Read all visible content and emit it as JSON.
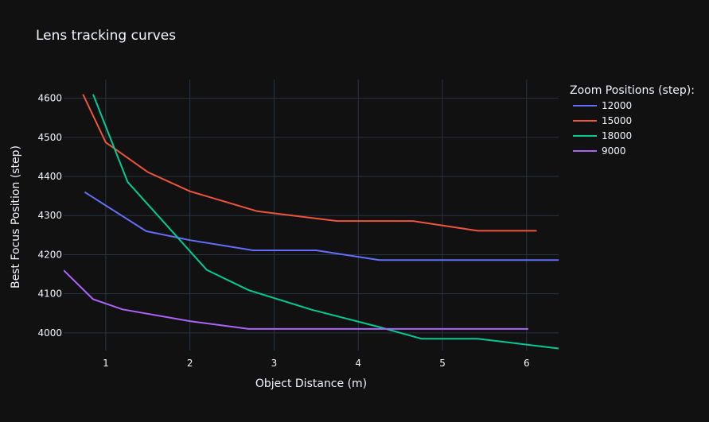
{
  "chart_data": {
    "type": "line",
    "title": "Lens tracking curves",
    "xlabel": "Object Distance (m)",
    "ylabel": "Best Focus Position (step)",
    "xlim": [
      0.5,
      6.38
    ],
    "ylim": [
      3955,
      4648
    ],
    "xticks": [
      1,
      2,
      3,
      4,
      5,
      6
    ],
    "yticks": [
      4000,
      4100,
      4200,
      4300,
      4400,
      4500,
      4600
    ],
    "grid": true,
    "legend": {
      "title": "Zoom Positions (step):",
      "placement": "right"
    },
    "series": [
      {
        "name": "12000",
        "color": "#636efa",
        "x": [
          0.75,
          1.48,
          2.0,
          2.75,
          3.5,
          4.25,
          6.38
        ],
        "y": [
          4360,
          4260,
          4237,
          4211,
          4211,
          4186,
          4186
        ]
      },
      {
        "name": "15000",
        "color": "#ef553b",
        "x": [
          0.73,
          1.0,
          1.5,
          2.0,
          2.8,
          3.75,
          4.65,
          5.42,
          6.12
        ],
        "y": [
          4610,
          4487,
          4411,
          4362,
          4311,
          4286,
          4286,
          4261,
          4261
        ]
      },
      {
        "name": "18000",
        "color": "#00cc96",
        "x": [
          0.85,
          1.26,
          2.2,
          2.7,
          3.45,
          4.25,
          4.75,
          5.42,
          6.38
        ],
        "y": [
          4610,
          4386,
          4161,
          4109,
          4059,
          4015,
          3985,
          3985,
          3960
        ]
      },
      {
        "name": "9000",
        "color": "#ab63fa",
        "x": [
          0.5,
          0.85,
          1.2,
          2.0,
          2.7,
          6.02
        ],
        "y": [
          4160,
          4086,
          4060,
          4030,
          4010,
          4010
        ]
      }
    ]
  }
}
